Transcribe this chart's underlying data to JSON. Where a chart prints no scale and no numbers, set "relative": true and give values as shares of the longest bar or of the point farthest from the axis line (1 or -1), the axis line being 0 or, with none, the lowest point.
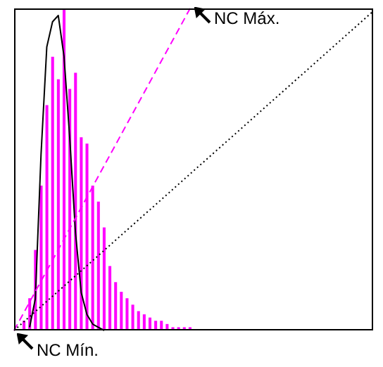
{
  "chart_data": [
    {
      "type": "bar",
      "relative": true,
      "annotations": [
        "NC Máx.",
        "NC Mín."
      ],
      "categories": [
        null,
        null,
        null,
        null,
        null,
        null,
        null,
        null,
        null,
        null,
        null,
        null,
        null,
        null,
        null,
        null,
        null,
        null,
        null,
        null,
        null,
        null,
        null,
        null,
        null,
        null,
        null,
        null,
        null,
        null
      ],
      "series": [
        {
          "color": "#ff00ff",
          "values": [
            0.03,
            0.1,
            0.25,
            0.45,
            0.7,
            0.85,
            0.78,
            1,
            0.75,
            0.8,
            0.6,
            0.58,
            0.45,
            0.4,
            0.32,
            0.2,
            0.15,
            0.12,
            0.1,
            0.08,
            0.06,
            0.05,
            0.04,
            0.03,
            0.03,
            0.02,
            0.01,
            0.01,
            0.01,
            0.01
          ]
        }
      ]
    },
    {
      "type": "line",
      "relative": true,
      "marker": "none",
      "categories": [
        null,
        null,
        null,
        null,
        null,
        null,
        null,
        null,
        null,
        null,
        null,
        null,
        null,
        null
      ],
      "series": [
        {
          "color": "#000000",
          "line_style": "solid",
          "values": [
            0.01,
            0.1,
            0.56,
            0.9,
            0.98,
            1,
            0.87,
            0.61,
            0.31,
            0.12,
            0.05,
            0.02,
            0.01,
            0
          ]
        }
      ]
    },
    {
      "type": "line",
      "relative": true,
      "marker": "none",
      "categories": [
        null,
        null
      ],
      "series": [
        {
          "color": "#ff00ff",
          "line_style": "dashed",
          "values": [
            0,
            1
          ]
        }
      ]
    },
    {
      "type": "line",
      "relative": true,
      "marker": "none",
      "categories": [
        null,
        null
      ],
      "series": [
        {
          "color": "#000000",
          "line_style": "dotted",
          "values": [
            0,
            1
          ]
        }
      ]
    }
  ]
}
